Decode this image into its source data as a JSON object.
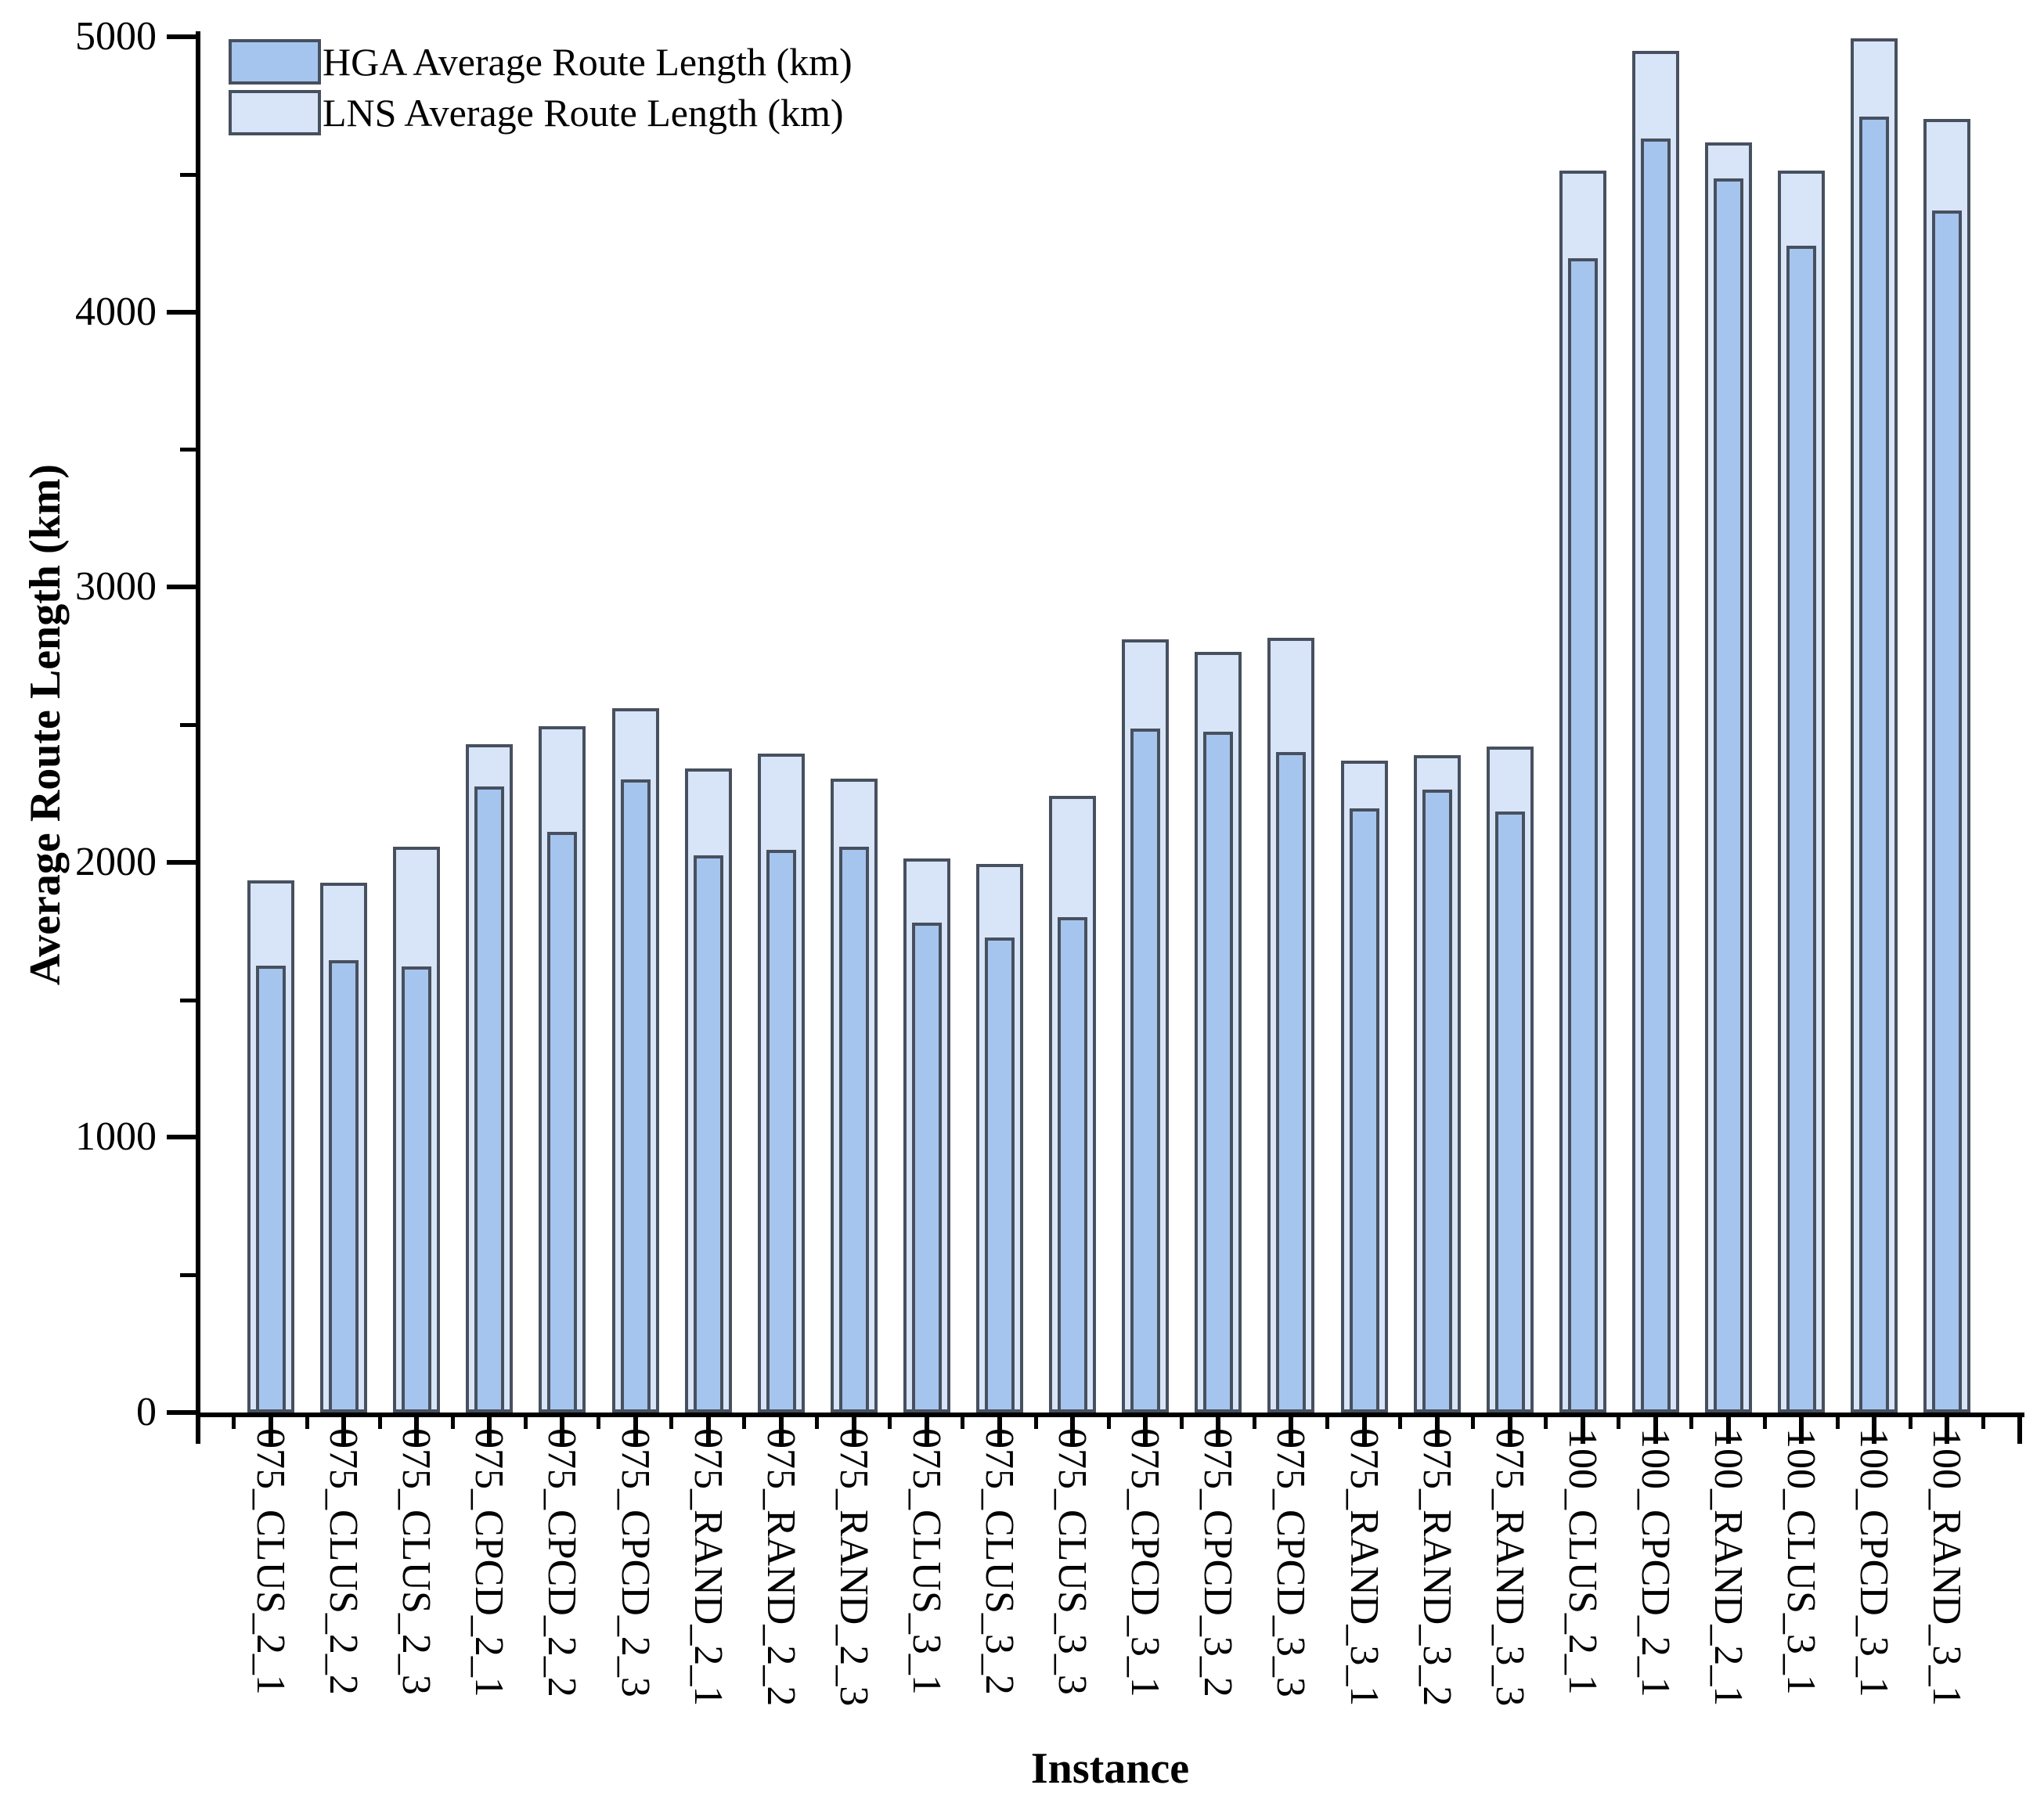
{
  "legend": {
    "items": [
      {
        "label": "HGA Average Route Length (km)",
        "color": "#a6c5ee"
      },
      {
        "label": "LNS Average Route Length (km)",
        "color": "#d8e4f7"
      }
    ]
  },
  "y_axis": {
    "title": "Average Route Length (km)"
  },
  "x_axis": {
    "title": "Instance"
  },
  "chart_data": {
    "type": "bar",
    "subtype": "overlapped",
    "title": "",
    "xlabel": "Instance",
    "ylabel": "Average Route Length (km)",
    "ylim": [
      0,
      5000
    ],
    "ytick_step": 1000,
    "yminor_step": 500,
    "grid": false,
    "legend_position": "top-left",
    "bar_border_color": "#47505e",
    "categories": [
      "075_CLUS_2_1",
      "075_CLUS_2_2",
      "075_CLUS_2_3",
      "075_CPCD_2_1",
      "075_CPCD_2_2",
      "075_CPCD_2_3",
      "075_RAND_2_1",
      "075_RAND_2_2",
      "075_RAND_2_3",
      "075_CLUS_3_1",
      "075_CLUS_3_2",
      "075_CLUS_3_3",
      "075_CPCD_3_1",
      "075_CPCD_3_2",
      "075_CPCD_3_3",
      "075_RAND_3_1",
      "075_RAND_3_2",
      "075_RAND_3_3",
      "100_CLUS_2_1",
      "100_CPCD_2_1",
      "100_RAND_2_1",
      "100_CLUS_3_1",
      "100_CPCD_3_1",
      "100_RAND_3_1"
    ],
    "series": [
      {
        "name": "LNS Average Route Length (km)",
        "color": "#d8e4f7",
        "values": [
          1935,
          1925,
          2055,
          2430,
          2495,
          2560,
          2340,
          2395,
          2305,
          2015,
          1995,
          2240,
          2810,
          2765,
          2815,
          2370,
          2390,
          2420,
          4515,
          4950,
          4615,
          4515,
          4995,
          4700
        ]
      },
      {
        "name": "HGA Average Route Length (km)",
        "color": "#a6c5ee",
        "values": [
          1625,
          1645,
          1620,
          2275,
          2110,
          2300,
          2025,
          2045,
          2055,
          1780,
          1725,
          1800,
          2485,
          2475,
          2400,
          2195,
          2265,
          2185,
          4195,
          4630,
          4485,
          4240,
          4710,
          4370
        ]
      }
    ]
  }
}
